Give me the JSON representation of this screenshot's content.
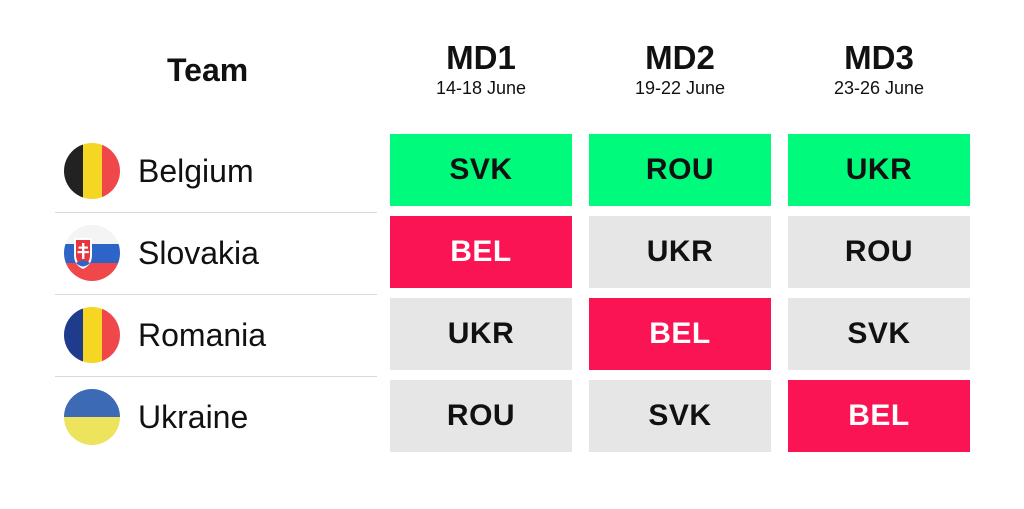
{
  "header": {
    "team_label": "Team",
    "matchdays": [
      {
        "title": "MD1",
        "dates": "14-18 June"
      },
      {
        "title": "MD2",
        "dates": "19-22 June"
      },
      {
        "title": "MD3",
        "dates": "23-26 June"
      }
    ]
  },
  "colors": {
    "highlight_green": "#00fa7b",
    "highlight_red": "#fb1454",
    "neutral_gray": "#e6e6e6"
  },
  "teams": [
    {
      "name": "Belgium",
      "flag_icon": "belgium-flag-icon",
      "fixtures": [
        {
          "opponent": "SVK",
          "status": "green"
        },
        {
          "opponent": "ROU",
          "status": "green"
        },
        {
          "opponent": "UKR",
          "status": "green"
        }
      ]
    },
    {
      "name": "Slovakia",
      "flag_icon": "slovakia-flag-icon",
      "fixtures": [
        {
          "opponent": "BEL",
          "status": "red"
        },
        {
          "opponent": "UKR",
          "status": "neutral"
        },
        {
          "opponent": "ROU",
          "status": "neutral"
        }
      ]
    },
    {
      "name": "Romania",
      "flag_icon": "romania-flag-icon",
      "fixtures": [
        {
          "opponent": "UKR",
          "status": "neutral"
        },
        {
          "opponent": "BEL",
          "status": "red"
        },
        {
          "opponent": "SVK",
          "status": "neutral"
        }
      ]
    },
    {
      "name": "Ukraine",
      "flag_icon": "ukraine-flag-icon",
      "fixtures": [
        {
          "opponent": "ROU",
          "status": "neutral"
        },
        {
          "opponent": "SVK",
          "status": "neutral"
        },
        {
          "opponent": "BEL",
          "status": "red"
        }
      ]
    }
  ]
}
